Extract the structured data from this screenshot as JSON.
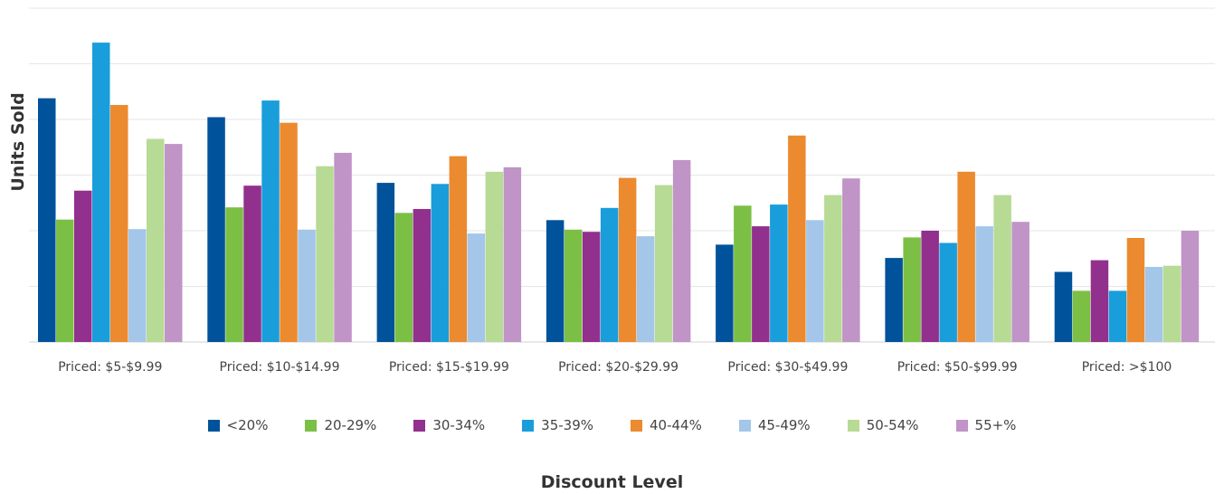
{
  "chart_data": {
    "type": "bar",
    "xlabel": "Discount Level",
    "ylabel": "Units Sold",
    "ylim": [
      0,
      6
    ],
    "grid": true,
    "legend_position": "bottom",
    "categories": [
      "Priced: $5-$9.99",
      "Priced: $10-$14.99",
      "Priced: $15-$19.99",
      "Priced: $20-$29.99",
      "Priced: $30-$49.99",
      "Priced: $50-$99.99",
      "Priced: >$100"
    ],
    "series": [
      {
        "name": "<20%",
        "color": "#00539b",
        "values": [
          4.38,
          4.04,
          2.86,
          2.19,
          1.75,
          1.51,
          1.26
        ]
      },
      {
        "name": "20-29%",
        "color": "#7cbf45",
        "values": [
          2.2,
          2.42,
          2.32,
          2.02,
          2.45,
          1.88,
          0.92
        ]
      },
      {
        "name": "30-34%",
        "color": "#92308d",
        "values": [
          2.72,
          2.81,
          2.39,
          1.98,
          2.08,
          2.0,
          1.47
        ]
      },
      {
        "name": "35-39%",
        "color": "#1a9ddb",
        "values": [
          5.38,
          4.34,
          2.84,
          2.41,
          2.47,
          1.78,
          0.92
        ]
      },
      {
        "name": "40-44%",
        "color": "#ec8a2f",
        "values": [
          4.26,
          3.94,
          3.34,
          2.95,
          3.71,
          3.06,
          1.87
        ]
      },
      {
        "name": "45-49%",
        "color": "#a3c6e9",
        "values": [
          2.03,
          2.02,
          1.95,
          1.9,
          2.19,
          2.08,
          1.35
        ]
      },
      {
        "name": "50-54%",
        "color": "#b7da95",
        "values": [
          3.65,
          3.16,
          3.06,
          2.82,
          2.64,
          2.64,
          1.37
        ]
      },
      {
        "name": "55+%",
        "color": "#c094c6",
        "values": [
          3.56,
          3.4,
          3.14,
          3.27,
          2.94,
          2.16,
          2.0
        ]
      }
    ]
  }
}
